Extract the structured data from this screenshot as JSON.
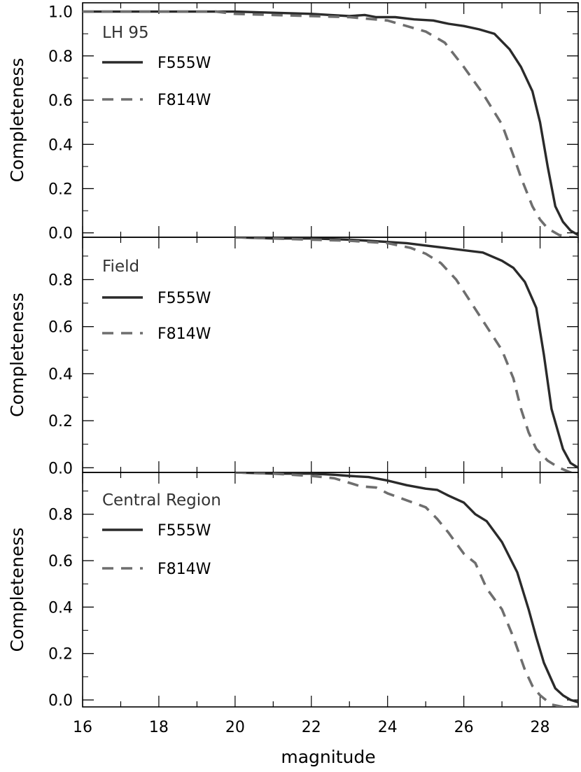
{
  "colors": {
    "F555W": "#2a2a2a",
    "F814W": "#6e6e6e",
    "frame": "#000000"
  },
  "chart_data": [
    {
      "type": "line",
      "panel_label": "LH 95",
      "ylabel": "Completeness",
      "xlabel": "",
      "xlim": [
        16,
        29
      ],
      "ylim": [
        -0.02,
        1.04
      ],
      "yticks": [
        "0.0",
        "0.2",
        "0.4",
        "0.6",
        "0.8",
        "1.0"
      ],
      "xticks": [],
      "legend": {
        "position": "top-left",
        "entries": [
          "F555W",
          "F814W"
        ]
      },
      "series": [
        {
          "name": "F555W",
          "style": "solid",
          "x": [
            16,
            17,
            18,
            19,
            20,
            21,
            22,
            22.5,
            23,
            23.4,
            23.7,
            24.2,
            24.7,
            25.2,
            25.6,
            26,
            26.4,
            26.8,
            27.2,
            27.5,
            27.8,
            28,
            28.2,
            28.4,
            28.6,
            28.8,
            29
          ],
          "y": [
            1.0,
            1.0,
            1.0,
            1.0,
            1.0,
            0.995,
            0.99,
            0.985,
            0.98,
            0.985,
            0.975,
            0.975,
            0.965,
            0.96,
            0.945,
            0.935,
            0.92,
            0.9,
            0.83,
            0.75,
            0.64,
            0.5,
            0.3,
            0.12,
            0.05,
            0.01,
            -0.01
          ]
        },
        {
          "name": "F814W",
          "style": "dashed",
          "x": [
            16,
            18,
            19.5,
            20,
            21,
            22,
            23,
            24,
            24.6,
            25,
            25.5,
            26,
            26.5,
            27,
            27.3,
            27.5,
            27.8,
            28,
            28.2,
            28.5,
            28.8,
            29
          ],
          "y": [
            1.0,
            1.0,
            1.0,
            0.99,
            0.985,
            0.98,
            0.975,
            0.96,
            0.93,
            0.91,
            0.86,
            0.75,
            0.63,
            0.49,
            0.35,
            0.25,
            0.12,
            0.06,
            0.02,
            -0.01,
            -0.02,
            -0.02
          ]
        }
      ]
    },
    {
      "type": "line",
      "panel_label": "Field",
      "ylabel": "Completeness",
      "xlabel": "",
      "xlim": [
        16,
        29
      ],
      "ylim": [
        -0.02,
        0.98
      ],
      "yticks": [
        "0.0",
        "0.2",
        "0.4",
        "0.6",
        "0.8"
      ],
      "xticks": [],
      "legend": {
        "position": "top-left",
        "entries": [
          "F555W",
          "F814W"
        ]
      },
      "series": [
        {
          "name": "F555W",
          "style": "solid",
          "x": [
            20,
            21,
            22,
            23,
            23.5,
            24,
            24.5,
            25,
            25.5,
            26,
            26.5,
            27,
            27.3,
            27.6,
            27.9,
            28.1,
            28.3,
            28.6,
            28.8,
            29
          ],
          "y": [
            0.98,
            0.975,
            0.975,
            0.97,
            0.965,
            0.96,
            0.955,
            0.945,
            0.935,
            0.925,
            0.915,
            0.88,
            0.85,
            0.79,
            0.68,
            0.48,
            0.25,
            0.08,
            0.02,
            0.0
          ]
        },
        {
          "name": "F814W",
          "style": "dashed",
          "x": [
            20,
            21,
            22,
            23,
            24,
            24.6,
            25,
            25.4,
            25.8,
            26.2,
            26.6,
            27,
            27.3,
            27.5,
            27.7,
            27.9,
            28.2,
            28.5,
            28.8,
            29
          ],
          "y": [
            0.98,
            0.975,
            0.97,
            0.965,
            0.955,
            0.935,
            0.91,
            0.87,
            0.8,
            0.7,
            0.6,
            0.5,
            0.38,
            0.25,
            0.15,
            0.08,
            0.03,
            0.0,
            -0.02,
            -0.02
          ]
        }
      ]
    },
    {
      "type": "line",
      "panel_label": "Central Region",
      "ylabel": "Completeness",
      "xlabel": "magnitude",
      "xlim": [
        16,
        29
      ],
      "ylim": [
        -0.03,
        0.98
      ],
      "yticks": [
        "0.0",
        "0.2",
        "0.4",
        "0.6",
        "0.8"
      ],
      "xticks": [
        "16",
        "18",
        "20",
        "22",
        "24",
        "26",
        "28"
      ],
      "legend": {
        "position": "top-left",
        "entries": [
          "F555W",
          "F814W"
        ]
      },
      "series": [
        {
          "name": "F555W",
          "style": "solid",
          "x": [
            20,
            21,
            22,
            22.6,
            23,
            23.5,
            24,
            24.5,
            25,
            25.3,
            25.6,
            26,
            26.3,
            26.6,
            27,
            27.4,
            27.7,
            27.9,
            28.1,
            28.4,
            28.6,
            28.8,
            29
          ],
          "y": [
            0.98,
            0.975,
            0.975,
            0.97,
            0.965,
            0.96,
            0.945,
            0.925,
            0.91,
            0.905,
            0.88,
            0.85,
            0.8,
            0.77,
            0.68,
            0.55,
            0.39,
            0.27,
            0.16,
            0.05,
            0.02,
            0.0,
            -0.01
          ]
        },
        {
          "name": "F814W",
          "style": "dashed",
          "x": [
            20,
            21,
            22,
            22.6,
            23,
            23.3,
            23.7,
            24,
            24.5,
            25,
            25.3,
            25.6,
            26,
            26.3,
            26.6,
            27,
            27.3,
            27.6,
            27.8,
            28,
            28.3,
            28.6,
            29
          ],
          "y": [
            0.98,
            0.975,
            0.965,
            0.955,
            0.935,
            0.92,
            0.915,
            0.89,
            0.86,
            0.83,
            0.78,
            0.72,
            0.63,
            0.59,
            0.48,
            0.39,
            0.27,
            0.13,
            0.06,
            0.02,
            -0.02,
            -0.03,
            -0.03
          ]
        }
      ]
    }
  ]
}
